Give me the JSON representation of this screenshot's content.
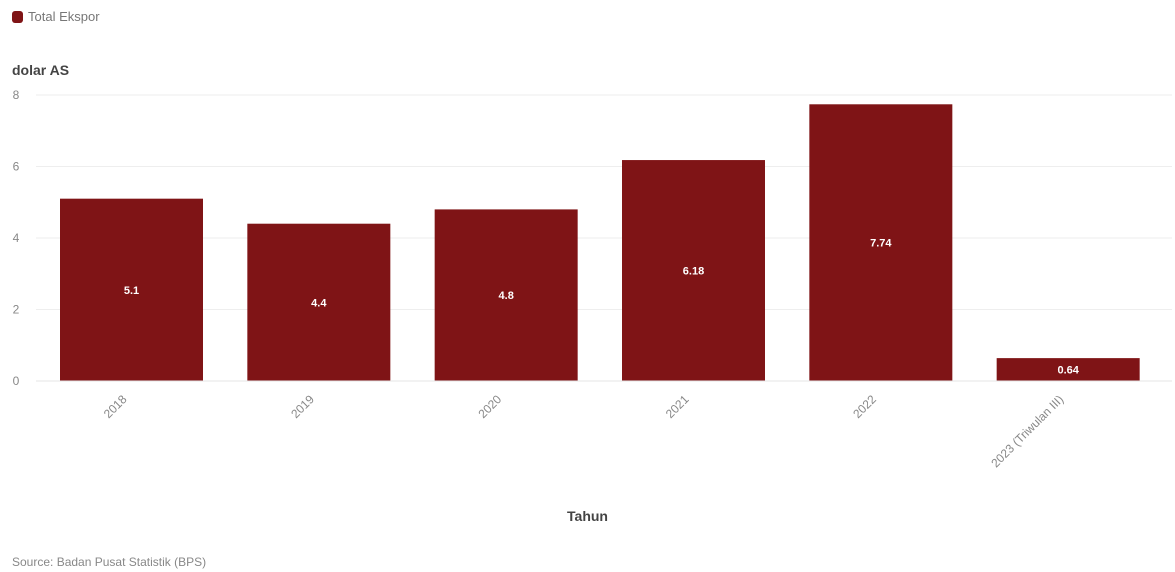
{
  "chart_data": {
    "type": "bar",
    "categories": [
      "2018",
      "2019",
      "2020",
      "2021",
      "2022",
      "2023 (Triwulan III)"
    ],
    "series": [
      {
        "name": "Total Ekspor",
        "values": [
          5.1,
          4.4,
          4.8,
          6.18,
          7.74,
          0.64
        ],
        "labels": [
          "5.1",
          "4.4",
          "4.8",
          "6.18",
          "7.74",
          "0.64"
        ],
        "color": "#7f1416"
      }
    ],
    "ylabel": "dolar AS",
    "xlabel": "Tahun",
    "ylim": [
      0,
      8
    ],
    "yticks": [
      "0",
      "2",
      "4",
      "6",
      "8"
    ],
    "grid": true,
    "legend_position": "top-left",
    "source": "Source: Badan Pusat Statistik (BPS)"
  }
}
